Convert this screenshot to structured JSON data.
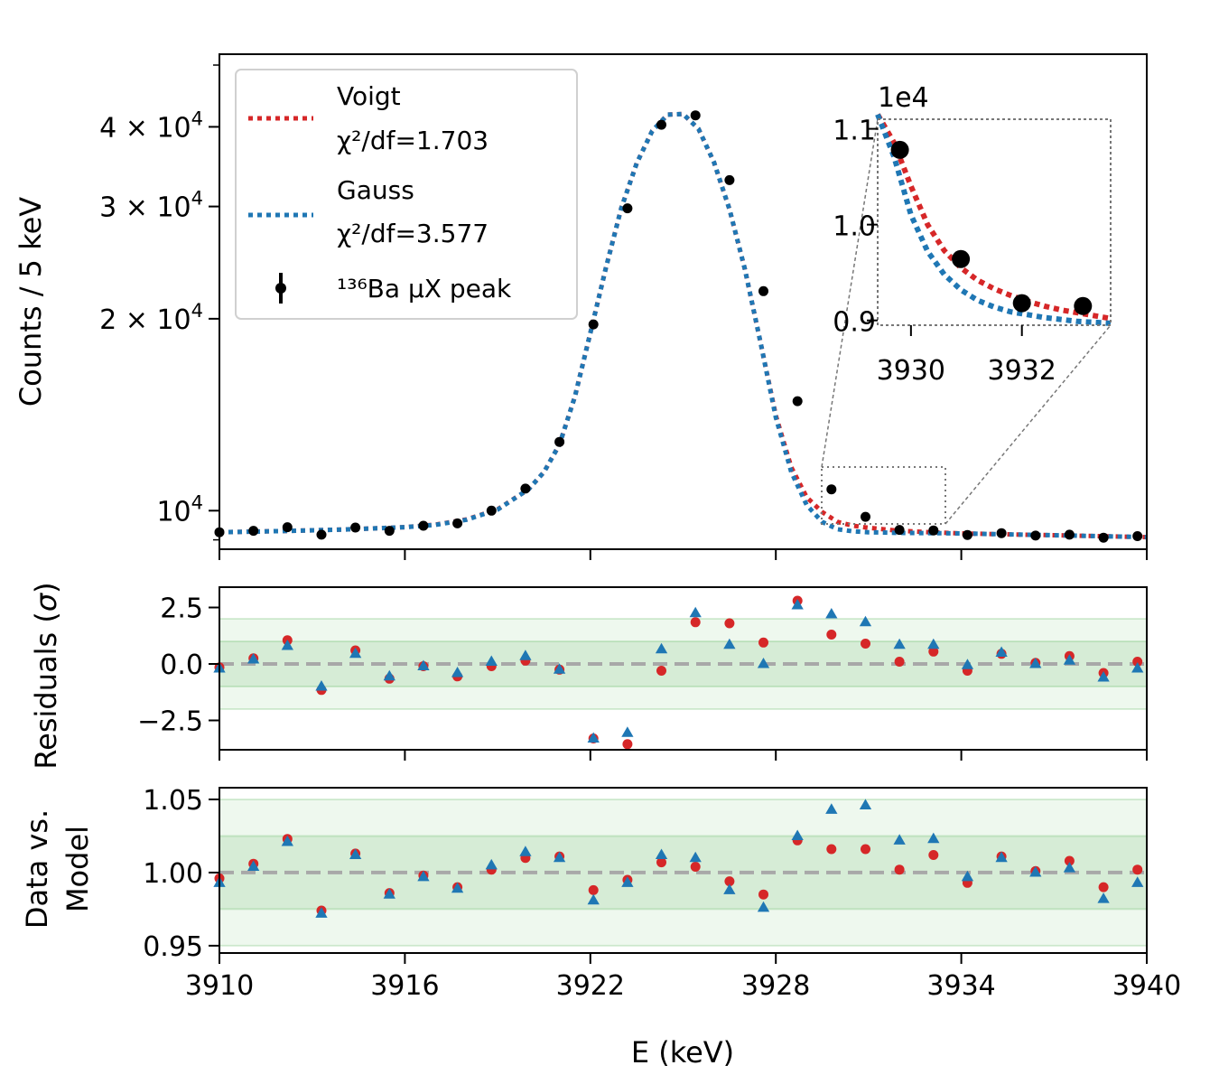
{
  "chart_data": [
    {
      "type": "scatter",
      "panel": "main",
      "ylabel": "Counts / 5 keV",
      "yscale": "log",
      "ylim": [
        8700,
        52000
      ],
      "xlim": [
        3910,
        3940
      ],
      "yticks": [
        {
          "value": 10000,
          "base": "10",
          "exp": "4",
          "mult": ""
        },
        {
          "value": 20000,
          "base": "10",
          "exp": "4",
          "mult": "2 × "
        },
        {
          "value": 30000,
          "base": "10",
          "exp": "4",
          "mult": "3 × "
        },
        {
          "value": 40000,
          "base": "10",
          "exp": "4",
          "mult": "4 × "
        }
      ],
      "legend": {
        "voigt_title": "Voigt",
        "voigt_chi": "χ²/df=1.703",
        "gauss_title": "Gauss",
        "gauss_chi": "χ²/df=3.577",
        "data_label": "¹³⁶Ba μX peak"
      },
      "data": {
        "x": [
          3910.0,
          3911.1,
          3912.2,
          3913.3,
          3914.4,
          3915.5,
          3916.6,
          3917.7,
          3918.8,
          3919.9,
          3921.0,
          3922.1,
          3923.2,
          3924.3,
          3925.4,
          3926.5,
          3927.6,
          3928.7,
          3929.8,
          3930.9,
          3932.0,
          3933.1,
          3934.2,
          3935.3,
          3936.4,
          3937.5,
          3938.6,
          3939.7
        ],
        "y": [
          9250,
          9300,
          9420,
          9170,
          9410,
          9300,
          9470,
          9550,
          10000,
          10830,
          12820,
          19600,
          29800,
          40300,
          41700,
          33000,
          22100,
          14850,
          10800,
          9780,
          9330,
          9310,
          9160,
          9220,
          9140,
          9170,
          9070,
          9120
        ]
      },
      "series": [
        {
          "name": "Voigt",
          "color": "#d62728",
          "x": [
            3910,
            3912,
            3914,
            3916,
            3917,
            3918,
            3919,
            3920,
            3920.5,
            3921,
            3921.5,
            3922,
            3922.5,
            3923,
            3923.5,
            3924,
            3924.5,
            3925,
            3925.5,
            3926,
            3926.5,
            3927,
            3927.5,
            3928,
            3928.5,
            3929,
            3929.5,
            3930,
            3930.5,
            3931,
            3932,
            3933,
            3934,
            3935,
            3936,
            3937,
            3938,
            3939,
            3940
          ],
          "y": [
            9250,
            9290,
            9340,
            9420,
            9510,
            9690,
            10050,
            10800,
            11500,
            12700,
            15100,
            19000,
            24000,
            29800,
            35100,
            39400,
            41800,
            41900,
            39700,
            35200,
            29700,
            23900,
            18400,
            14100,
            11700,
            10500,
            9950,
            9600,
            9470,
            9400,
            9300,
            9250,
            9210,
            9190,
            9170,
            9150,
            9130,
            9110,
            9090
          ]
        },
        {
          "name": "Gauss",
          "color": "#1f77b4",
          "x": [
            3910,
            3912,
            3914,
            3916,
            3917,
            3918,
            3919,
            3920,
            3920.5,
            3921,
            3921.5,
            3922,
            3922.5,
            3923,
            3923.5,
            3924,
            3924.5,
            3925,
            3925.5,
            3926,
            3926.5,
            3927,
            3927.5,
            3928,
            3928.5,
            3929,
            3929.5,
            3930,
            3930.5,
            3931,
            3932,
            3933,
            3934,
            3935,
            3936,
            3937,
            3938,
            3939,
            3940
          ],
          "y": [
            9250,
            9290,
            9340,
            9420,
            9500,
            9680,
            10040,
            10800,
            11500,
            12700,
            15100,
            19000,
            24000,
            29800,
            35100,
            39400,
            41800,
            41900,
            39700,
            35200,
            29700,
            23900,
            18400,
            14000,
            11500,
            10200,
            9600,
            9350,
            9280,
            9250,
            9230,
            9220,
            9210,
            9190,
            9170,
            9150,
            9130,
            9110,
            9090
          ]
        }
      ]
    },
    {
      "type": "scatter",
      "panel": "inset",
      "title_exponent": "1e4",
      "xlim": [
        3929.4,
        3933.6
      ],
      "ylim": [
        0.895,
        1.11
      ],
      "xticks": [
        {
          "value": 3930,
          "label": "3930"
        },
        {
          "value": 3932,
          "label": "3932"
        }
      ],
      "yticks": [
        {
          "value": 0.9,
          "label": "0.9"
        },
        {
          "value": 1.0,
          "label": "1.0"
        },
        {
          "value": 1.1,
          "label": "1.1"
        }
      ],
      "data": {
        "x": [
          3929.8,
          3930.9,
          3932.0,
          3933.1
        ],
        "y": [
          1.078,
          0.964,
          0.918,
          0.915
        ]
      },
      "series": [
        {
          "name": "Voigt",
          "color": "#d62728",
          "x": [
            3929.4,
            3929.7,
            3930.0,
            3930.3,
            3930.6,
            3930.9,
            3931.2,
            3931.5,
            3931.8,
            3932.1,
            3932.4,
            3932.7,
            3933.0,
            3933.3,
            3933.6
          ],
          "y": [
            1.115,
            1.085,
            1.04,
            1.0,
            0.973,
            0.955,
            0.942,
            0.933,
            0.926,
            0.92,
            0.915,
            0.911,
            0.908,
            0.905,
            0.902
          ]
        },
        {
          "name": "Gauss",
          "color": "#1f77b4",
          "x": [
            3929.4,
            3929.7,
            3930.0,
            3930.3,
            3930.6,
            3930.9,
            3931.2,
            3931.5,
            3931.8,
            3932.1,
            3932.4,
            3932.7,
            3933.0,
            3933.3,
            3933.6
          ],
          "y": [
            1.115,
            1.07,
            1.01,
            0.972,
            0.948,
            0.932,
            0.921,
            0.914,
            0.909,
            0.906,
            0.903,
            0.901,
            0.899,
            0.898,
            0.897
          ]
        }
      ]
    },
    {
      "type": "scatter",
      "panel": "residuals",
      "ylabel_text": "Residuals ",
      "ylabel_sym": "σ",
      "ylim": [
        -3.8,
        3.4
      ],
      "xlim": [
        3910,
        3940
      ],
      "yticks": [
        {
          "value": 2.5,
          "label": "2.5"
        },
        {
          "value": 0.0,
          "label": "0.0"
        },
        {
          "value": -2.5,
          "label": "−2.5"
        }
      ],
      "bands": {
        "inner": 1,
        "outer": 2
      },
      "x": [
        3910.0,
        3911.1,
        3912.2,
        3913.3,
        3914.4,
        3915.5,
        3916.6,
        3917.7,
        3918.8,
        3919.9,
        3921.0,
        3922.1,
        3923.2,
        3924.3,
        3925.4,
        3926.5,
        3927.6,
        3928.7,
        3929.8,
        3930.9,
        3932.0,
        3933.1,
        3934.2,
        3935.3,
        3936.4,
        3937.5,
        3938.6,
        3939.7
      ],
      "series": [
        {
          "name": "Voigt",
          "marker": "circle",
          "color": "#d62728",
          "values": [
            -0.15,
            0.25,
            1.05,
            -1.15,
            0.6,
            -0.65,
            -0.1,
            -0.55,
            -0.1,
            0.15,
            -0.25,
            -3.3,
            -3.55,
            -0.3,
            1.85,
            1.8,
            0.95,
            2.8,
            1.3,
            0.9,
            0.1,
            0.55,
            -0.3,
            0.45,
            0.05,
            0.35,
            -0.4,
            0.1
          ]
        },
        {
          "name": "Gauss",
          "marker": "triangle",
          "color": "#1f77b4",
          "values": [
            -0.2,
            0.2,
            0.8,
            -1.0,
            0.45,
            -0.55,
            -0.1,
            -0.4,
            0.1,
            0.35,
            -0.25,
            -3.3,
            -3.05,
            0.65,
            2.25,
            0.85,
            0.0,
            2.6,
            2.2,
            1.85,
            0.85,
            0.85,
            -0.05,
            0.5,
            0.0,
            0.15,
            -0.6,
            -0.2
          ]
        }
      ]
    },
    {
      "type": "scatter",
      "panel": "ratio",
      "ylabel_line1": "Data vs.",
      "ylabel_line2": "Model",
      "xlabel": "E (keV)",
      "ylim": [
        0.945,
        1.058
      ],
      "xlim": [
        3910,
        3940
      ],
      "yticks": [
        {
          "value": 1.05,
          "label": "1.05"
        },
        {
          "value": 1.0,
          "label": "1.00"
        },
        {
          "value": 0.95,
          "label": "0.95"
        }
      ],
      "xticks": [
        {
          "value": 3910,
          "label": "3910"
        },
        {
          "value": 3916,
          "label": "3916"
        },
        {
          "value": 3922,
          "label": "3922"
        },
        {
          "value": 3928,
          "label": "3928"
        },
        {
          "value": 3934,
          "label": "3934"
        },
        {
          "value": 3940,
          "label": "3940"
        }
      ],
      "bands": {
        "inner": 0.025,
        "outer": 0.05
      },
      "x": [
        3910.0,
        3911.1,
        3912.2,
        3913.3,
        3914.4,
        3915.5,
        3916.6,
        3917.7,
        3918.8,
        3919.9,
        3921.0,
        3922.1,
        3923.2,
        3924.3,
        3925.4,
        3926.5,
        3927.6,
        3928.7,
        3929.8,
        3930.9,
        3932.0,
        3933.1,
        3934.2,
        3935.3,
        3936.4,
        3937.5,
        3938.6,
        3939.7
      ],
      "series": [
        {
          "name": "Voigt",
          "marker": "circle",
          "color": "#d62728",
          "values": [
            0.996,
            1.006,
            1.023,
            0.974,
            1.013,
            0.986,
            0.998,
            0.99,
            1.002,
            1.01,
            1.011,
            0.988,
            0.995,
            1.007,
            1.004,
            0.994,
            0.985,
            1.022,
            1.016,
            1.016,
            1.002,
            1.012,
            0.993,
            1.011,
            1.001,
            1.008,
            0.99,
            1.002
          ]
        },
        {
          "name": "Gauss",
          "marker": "triangle",
          "color": "#1f77b4",
          "values": [
            0.993,
            1.004,
            1.021,
            0.972,
            1.012,
            0.985,
            0.997,
            0.989,
            1.005,
            1.014,
            1.01,
            0.981,
            0.993,
            1.012,
            1.01,
            0.988,
            0.976,
            1.025,
            1.043,
            1.046,
            1.022,
            1.023,
            0.997,
            1.01,
            1.0,
            1.003,
            0.982,
            0.993
          ]
        }
      ]
    }
  ]
}
